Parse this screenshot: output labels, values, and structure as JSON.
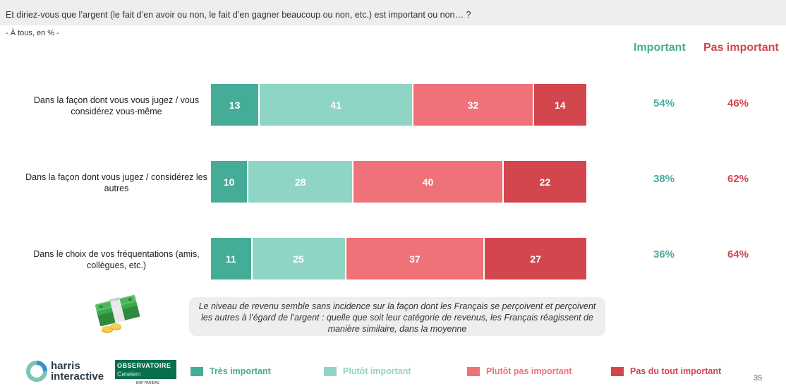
{
  "question": {
    "text": "Et diriez-vous que l’argent (le fait d’en avoir ou non, le fait d’en gagner beaucoup ou non, etc.) est important ou non… ?",
    "base": "- À tous, en % -"
  },
  "columns": {
    "important": "Important",
    "pas_important": "Pas important"
  },
  "colors": {
    "tres_important": "#45ac97",
    "plutot_important": "#8fd5c6",
    "plutot_pas_important": "#ee7277",
    "pas_du_tout_important": "#d3464e"
  },
  "chart_data": {
    "type": "bar",
    "orientation": "horizontal",
    "stacked": true,
    "categories": [
      "Dans la façon dont vous vous jugez / vous considérez vous-même",
      "Dans la façon dont vous jugez / considérez les autres",
      "Dans le choix de vos fréquentations (amis, collègues, etc.)"
    ],
    "series": [
      {
        "name": "Très important",
        "values": [
          13,
          10,
          11
        ],
        "color": "#45ac97"
      },
      {
        "name": "Plutôt important",
        "values": [
          41,
          28,
          25
        ],
        "color": "#8fd5c6"
      },
      {
        "name": "Plutôt pas important",
        "values": [
          32,
          40,
          37
        ],
        "color": "#ee7277"
      },
      {
        "name": "Pas du tout important",
        "values": [
          14,
          22,
          27
        ],
        "color": "#d3464e"
      }
    ],
    "totals": {
      "important": [
        "54%",
        "38%",
        "36%"
      ],
      "pas_important": [
        "46%",
        "62%",
        "64%"
      ]
    },
    "legend_position": "bottom"
  },
  "rows": [
    {
      "label": "Dans la façon dont vous vous jugez / vous considérez vous-même",
      "important": "54%",
      "pas_important": "46%"
    },
    {
      "label": "Dans la façon dont vous jugez / considérez les autres",
      "important": "38%",
      "pas_important": "62%"
    },
    {
      "label": "Dans le choix de vos fréquentations (amis, collègues, etc.)",
      "important": "36%",
      "pas_important": "64%"
    }
  ],
  "note": "Le niveau de revenu semble sans incidence sur la façon dont les Français se perçoivent et perçoivent les autres à l’égard de l’argent : quelle que soit leur catégorie de revenus, les Français réagissent de manière similaire, dans la moyenne",
  "legend": [
    {
      "label": "Très important",
      "color": "#45ac97"
    },
    {
      "label": "Plutôt important",
      "color": "#8fd5c6"
    },
    {
      "label": "Plutôt pas important",
      "color": "#ee7277"
    },
    {
      "label": "Pas du tout important",
      "color": "#d3464e"
    }
  ],
  "logos": {
    "harris_line1": "harris",
    "harris_line2": "interactive",
    "observatoire_title": "OBSERVATOIRE",
    "observatoire_sub": "Cetelem",
    "observatoire_strip": "BNP PARIBAS"
  },
  "page_number": "35"
}
